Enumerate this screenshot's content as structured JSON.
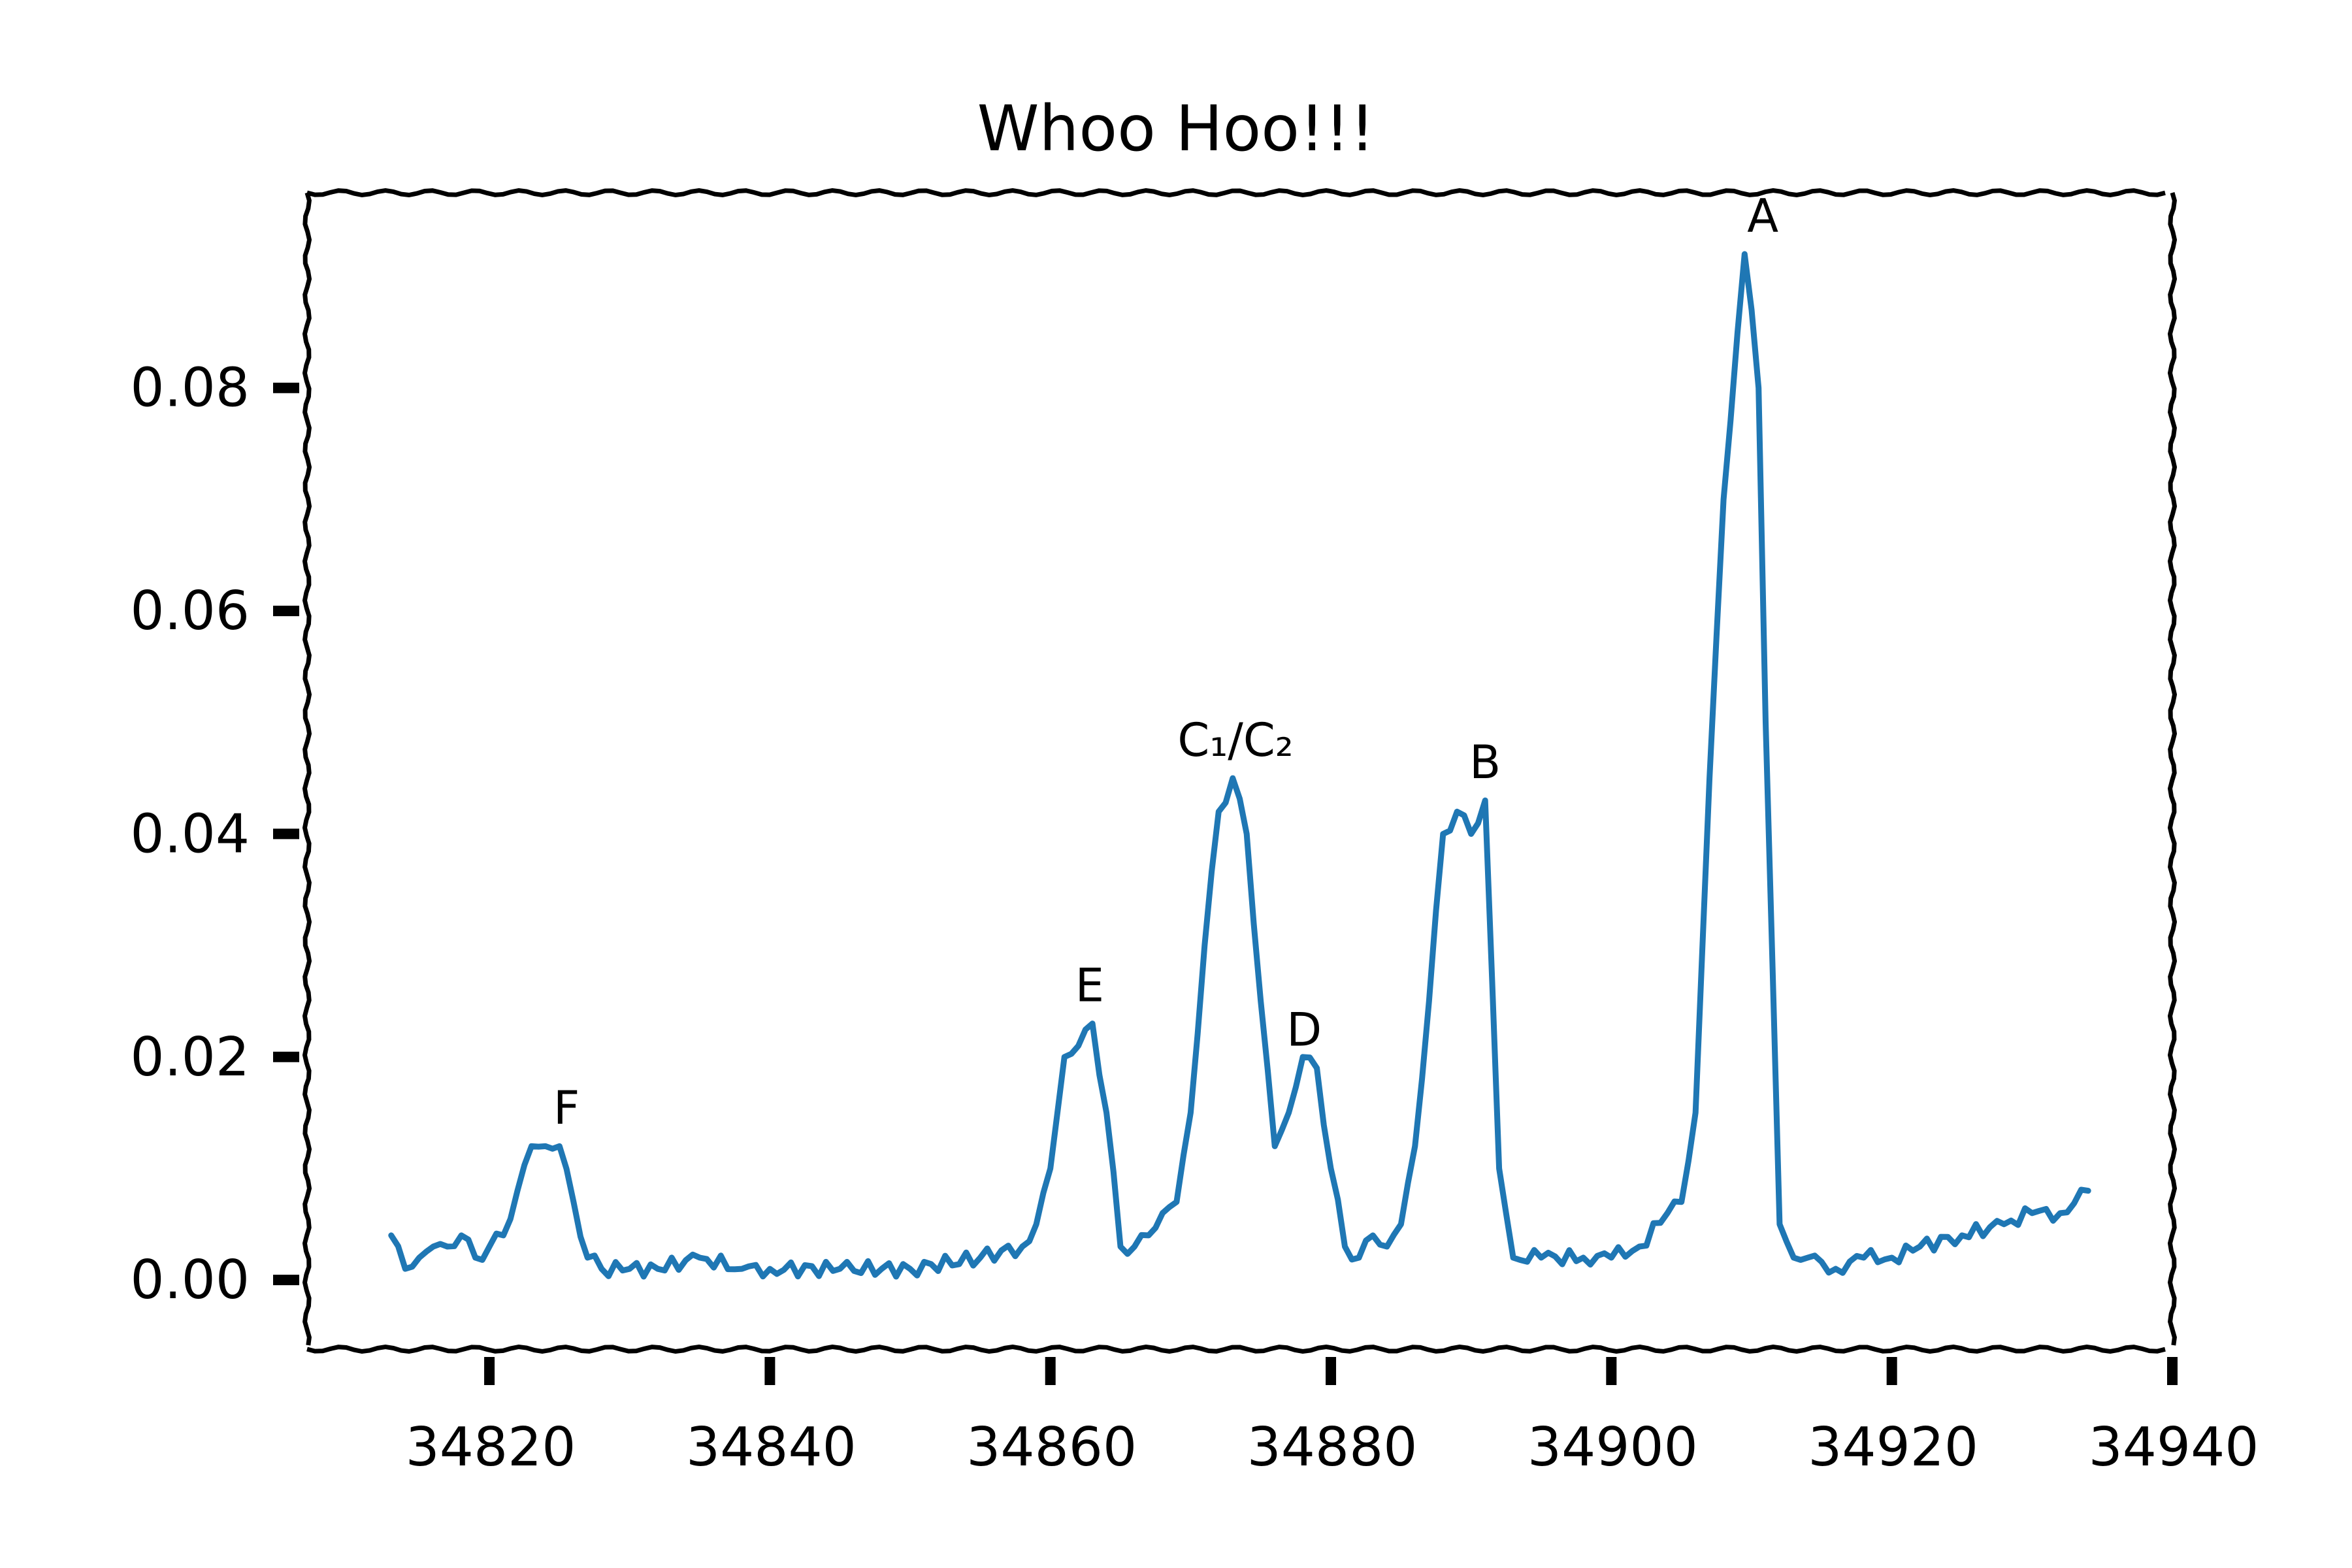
{
  "chart_data": {
    "type": "line",
    "title": "Whoo Hoo!!!",
    "xlabel": "",
    "ylabel": "",
    "xlim": [
      34807,
      34940
    ],
    "ylim": [
      -0.0062,
      0.0975
    ],
    "grid": false,
    "legend": "none",
    "x_ticks": [
      34820,
      34840,
      34860,
      34880,
      34900,
      34920,
      34940
    ],
    "x_tick_labels": [
      "34820",
      "34840",
      "34860",
      "34880",
      "34900",
      "34920",
      "34940"
    ],
    "y_ticks": [
      0.0,
      0.02,
      0.04,
      0.06,
      0.08
    ],
    "y_tick_labels": [
      "0.00",
      "0.02",
      "0.04",
      "0.06",
      "0.08"
    ],
    "colors": {
      "series": "#1f77b4",
      "axes": "#000000"
    },
    "series": [
      {
        "color": "#1f77b4",
        "x": [
          34813,
          34814,
          34815,
          34816,
          34817,
          34818,
          34819,
          34820,
          34821,
          34822,
          34823,
          34824,
          34825,
          34826,
          34827,
          34828,
          34830,
          34832,
          34835,
          34838,
          34840,
          34845,
          34850,
          34855,
          34858,
          34859,
          34860,
          34861,
          34862,
          34863,
          34864,
          34865,
          34866,
          34867,
          34868,
          34869,
          34870,
          34871,
          34872,
          34873,
          34874,
          34875,
          34876,
          34877,
          34878,
          34879,
          34880,
          34881,
          34882,
          34883,
          34884,
          34885,
          34886,
          34887,
          34888,
          34889,
          34890,
          34891,
          34892,
          34893,
          34895,
          34898,
          34900,
          34902,
          34904,
          34905,
          34906,
          34907,
          34908,
          34909,
          34909.5,
          34910,
          34910.5,
          34911,
          34912,
          34913,
          34914,
          34916,
          34918,
          34920,
          34922,
          34925,
          34928,
          34930,
          34932,
          34934
        ],
        "values": [
          0.004,
          0.001,
          0.002,
          0.003,
          0.003,
          0.004,
          0.002,
          0.003,
          0.004,
          0.008,
          0.012,
          0.012,
          0.012,
          0.007,
          0.002,
          0.001,
          0.001,
          0.001,
          0.002,
          0.001,
          0.001,
          0.001,
          0.001,
          0.002,
          0.003,
          0.005,
          0.01,
          0.02,
          0.021,
          0.023,
          0.015,
          0.003,
          0.003,
          0.004,
          0.006,
          0.007,
          0.015,
          0.03,
          0.042,
          0.045,
          0.04,
          0.025,
          0.012,
          0.015,
          0.02,
          0.019,
          0.01,
          0.003,
          0.002,
          0.004,
          0.003,
          0.005,
          0.012,
          0.025,
          0.04,
          0.042,
          0.04,
          0.043,
          0.01,
          0.002,
          0.002,
          0.002,
          0.002,
          0.003,
          0.006,
          0.007,
          0.015,
          0.045,
          0.07,
          0.085,
          0.092,
          0.087,
          0.08,
          0.05,
          0.005,
          0.002,
          0.002,
          0.001,
          0.002,
          0.002,
          0.003,
          0.004,
          0.005,
          0.006,
          0.006,
          0.008
        ]
      }
    ],
    "annotations": [
      {
        "text": "F",
        "x": 34825.5,
        "y": 0.014
      },
      {
        "text": "E",
        "x": 34862.8,
        "y": 0.025
      },
      {
        "text": "C₁/C₂",
        "x": 34873.2,
        "y": 0.047
      },
      {
        "text": "D",
        "x": 34878.1,
        "y": 0.021
      },
      {
        "text": "B",
        "x": 34891,
        "y": 0.045
      },
      {
        "text": "A",
        "x": 34910.8,
        "y": 0.094
      }
    ]
  }
}
